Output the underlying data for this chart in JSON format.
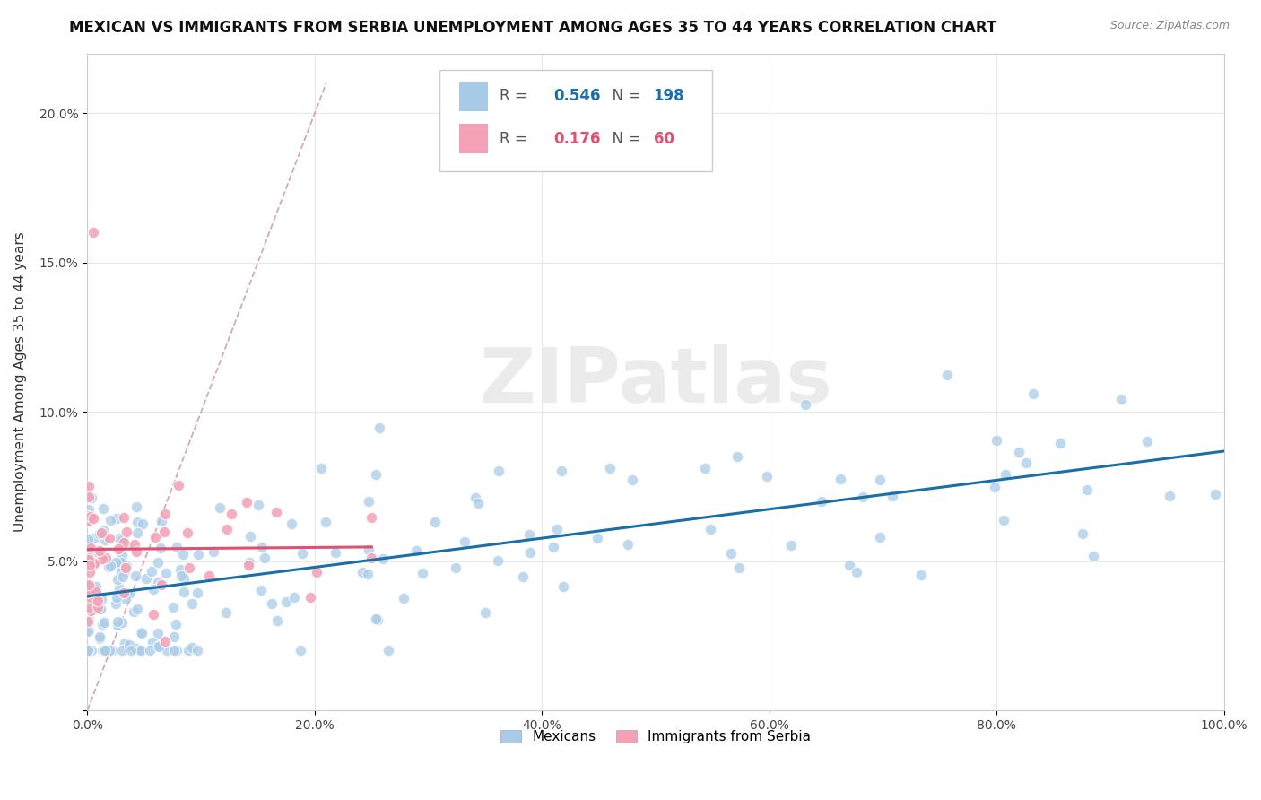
{
  "title": "MEXICAN VS IMMIGRANTS FROM SERBIA UNEMPLOYMENT AMONG AGES 35 TO 44 YEARS CORRELATION CHART",
  "source": "Source: ZipAtlas.com",
  "ylabel": "Unemployment Among Ages 35 to 44 years",
  "xlim": [
    0,
    1.0
  ],
  "ylim": [
    0,
    0.22
  ],
  "xtick_vals": [
    0.0,
    0.2,
    0.4,
    0.6,
    0.8,
    1.0
  ],
  "xtick_labels": [
    "0.0%",
    "20.0%",
    "40.0%",
    "60.0%",
    "80.0%",
    "100.0%"
  ],
  "ytick_vals": [
    0.0,
    0.05,
    0.1,
    0.15,
    0.2
  ],
  "ytick_labels": [
    "",
    "5.0%",
    "10.0%",
    "15.0%",
    "20.0%"
  ],
  "r_mexican": 0.546,
  "n_mexican": 198,
  "r_serbia": 0.176,
  "n_serbia": 60,
  "mexican_color": "#a8cce8",
  "serbia_color": "#f4a0b5",
  "regression_line_color_mexican": "#1a6fa8",
  "regression_line_color_serbia": "#e05070",
  "diagonal_line_color": "#d0a0b0",
  "background_color": "#ffffff",
  "grid_color": "#e8e8e8",
  "watermark_color": "#ebebeb",
  "legend_labels": [
    "Mexicans",
    "Immigrants from Serbia"
  ],
  "title_fontsize": 12,
  "axis_label_fontsize": 11,
  "tick_fontsize": 10
}
